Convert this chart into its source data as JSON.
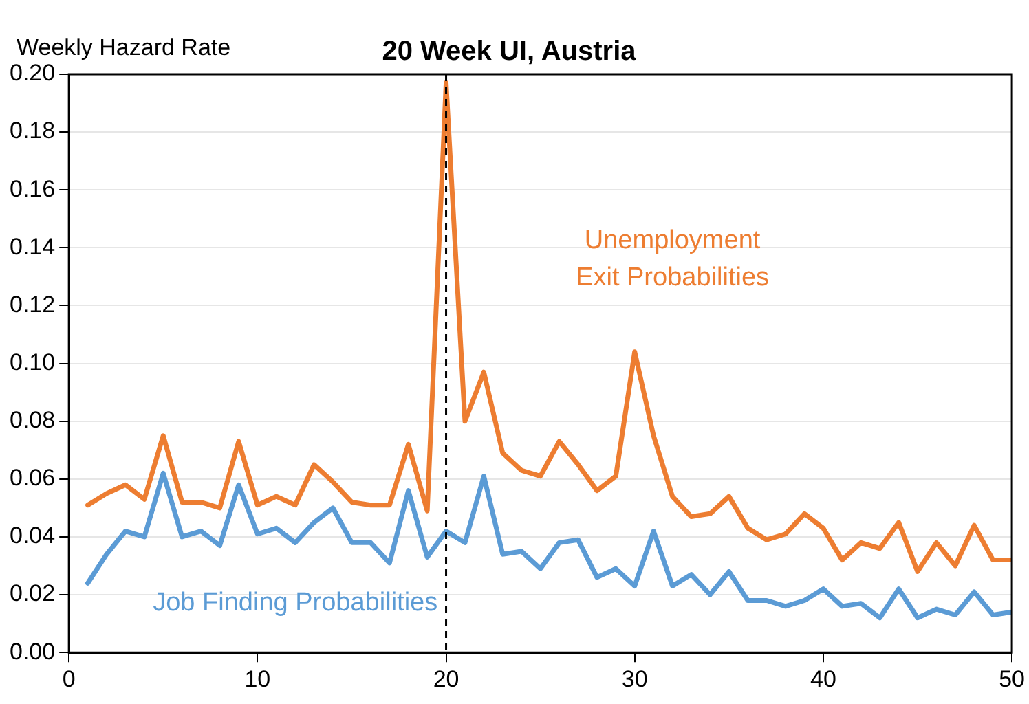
{
  "chart_data": {
    "type": "line",
    "title": "20 Week UI, Austria",
    "ylabel": "Weekly Hazard Rate",
    "x": [
      1,
      2,
      3,
      4,
      5,
      6,
      7,
      8,
      9,
      10,
      11,
      12,
      13,
      14,
      15,
      16,
      17,
      18,
      19,
      20,
      21,
      22,
      23,
      24,
      25,
      26,
      27,
      28,
      29,
      30,
      31,
      32,
      33,
      34,
      35,
      36,
      37,
      38,
      39,
      40,
      41,
      42,
      43,
      44,
      45,
      46,
      47,
      48,
      49,
      50
    ],
    "series": [
      {
        "name": "Unemployment\nExit Probabilities",
        "color": "#ed7d31",
        "values": [
          0.051,
          0.055,
          0.058,
          0.053,
          0.075,
          0.052,
          0.052,
          0.05,
          0.073,
          0.051,
          0.054,
          0.051,
          0.065,
          0.059,
          0.052,
          0.051,
          0.051,
          0.072,
          0.049,
          0.197,
          0.08,
          0.097,
          0.069,
          0.063,
          0.061,
          0.073,
          0.065,
          0.056,
          0.061,
          0.104,
          0.075,
          0.054,
          0.047,
          0.048,
          0.054,
          0.043,
          0.039,
          0.041,
          0.048,
          0.043,
          0.032,
          0.038,
          0.036,
          0.045,
          0.028,
          0.038,
          0.03,
          0.044,
          0.032,
          0.032
        ]
      },
      {
        "name": "Job Finding Probabilities",
        "color": "#5b9bd5",
        "values": [
          0.024,
          0.034,
          0.042,
          0.04,
          0.062,
          0.04,
          0.042,
          0.037,
          0.058,
          0.041,
          0.043,
          0.038,
          0.045,
          0.05,
          0.038,
          0.038,
          0.031,
          0.056,
          0.033,
          0.042,
          0.038,
          0.061,
          0.034,
          0.035,
          0.029,
          0.038,
          0.039,
          0.026,
          0.029,
          0.023,
          0.042,
          0.023,
          0.027,
          0.02,
          0.028,
          0.018,
          0.018,
          0.016,
          0.018,
          0.022,
          0.016,
          0.017,
          0.012,
          0.022,
          0.012,
          0.015,
          0.013,
          0.021,
          0.013,
          0.014
        ]
      }
    ],
    "xlim": [
      0,
      50
    ],
    "xticks": [
      0,
      10,
      20,
      30,
      40,
      50
    ],
    "ylim": [
      0,
      0.2
    ],
    "yticks": [
      {
        "value": 0,
        "label": "0.00"
      },
      {
        "value": 0.02,
        "label": "0.02"
      },
      {
        "value": 0.04,
        "label": "0.04"
      },
      {
        "value": 0.06,
        "label": "0.06"
      },
      {
        "value": 0.08,
        "label": "0.08"
      },
      {
        "value": 0.1,
        "label": "0.10"
      },
      {
        "value": 0.12,
        "label": "0.12"
      },
      {
        "value": 0.14,
        "label": "0.14"
      },
      {
        "value": 0.16,
        "label": "0.16"
      },
      {
        "value": 0.18,
        "label": "0.18"
      },
      {
        "value": 0.2,
        "label": "0.20"
      }
    ],
    "ref_lines": [
      {
        "axis": "x",
        "value": 20,
        "color": "#000000",
        "line_style": "dashed"
      }
    ],
    "grid": "y",
    "legend": false,
    "marker": "none",
    "line_style": "solid"
  }
}
